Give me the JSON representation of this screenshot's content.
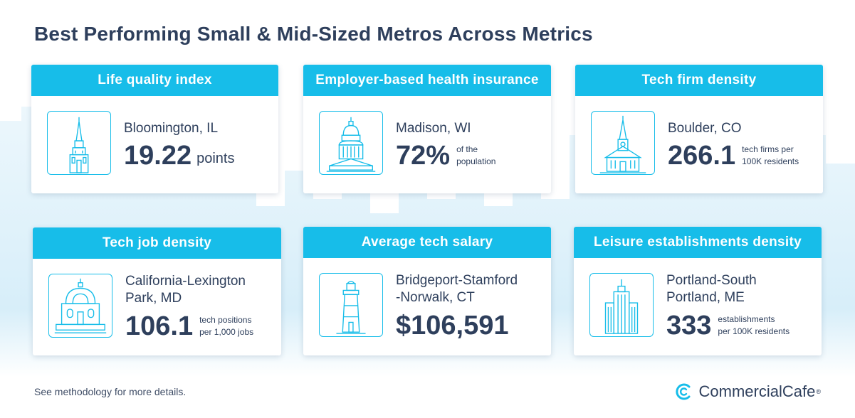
{
  "title": "Best Performing Small & Mid-Sized Metros Across Metrics",
  "cards": [
    {
      "header": "Life quality index",
      "city": "Bloomington, IL",
      "value": "19.22",
      "unit_inline": "points",
      "icon": "church-spire-icon"
    },
    {
      "header": "Employer-based health insurance",
      "city": "Madison, WI",
      "value": "72%",
      "unit_line1": "of the",
      "unit_line2": "population",
      "icon": "capitol-dome-icon"
    },
    {
      "header": "Tech firm density",
      "city": "Boulder, CO",
      "value": "266.1",
      "unit_line1": "tech firms per",
      "unit_line2": "100K residents",
      "icon": "chapel-icon"
    },
    {
      "header": "Tech job density",
      "city_line1": "California-Lexington",
      "city_line2": "Park, MD",
      "value": "106.1",
      "unit_line1": "tech positions",
      "unit_line2": "per 1,000 jobs",
      "icon": "domed-hall-icon"
    },
    {
      "header": "Average tech salary",
      "city_line1": "Bridgeport-Stamford",
      "city_line2": "-Norwalk, CT",
      "value": "$106,591",
      "icon": "lighthouse-icon"
    },
    {
      "header": "Leisure establishments density",
      "city_line1": "Portland-South",
      "city_line2": "Portland, ME",
      "value": "333",
      "unit_line1": "establishments",
      "unit_line2": "per 100K residents",
      "icon": "tower-building-icon"
    }
  ],
  "footer": {
    "note": "See methodology for more details.",
    "brand": "CommercialCafe",
    "brand_mark": "®"
  },
  "colors": {
    "accent": "#17bde9",
    "text": "#2e3f5c",
    "skyline": "#e3f3fb"
  }
}
